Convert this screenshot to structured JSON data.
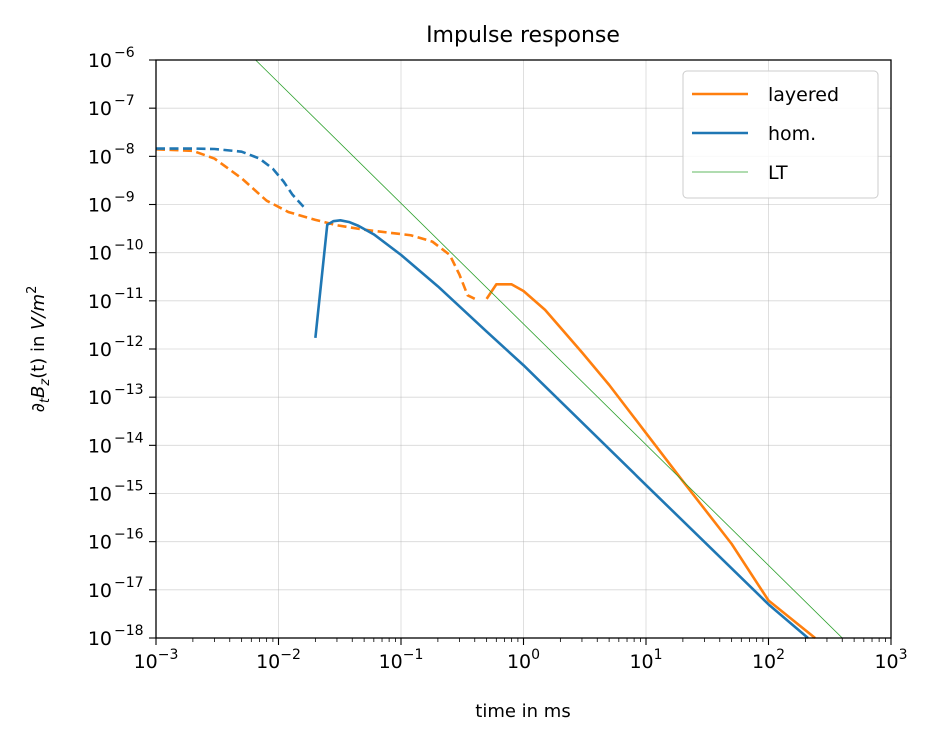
{
  "chart_data": {
    "type": "line",
    "title": "Impulse response",
    "xlabel": "time in ms",
    "ylabel": "∂tBz(t) in V/m²",
    "ylabel_parts": {
      "pre": "∂",
      "sub1": "t",
      "mid": "B",
      "sub2": "z",
      "arg": "(t) in ",
      "unit": "V/m",
      "sup": "2"
    },
    "xscale": "log",
    "yscale": "log",
    "xlim": [
      0.001,
      1000
    ],
    "ylim": [
      1e-18,
      1e-06
    ],
    "x_ticks": [
      {
        "base": "10",
        "exp": "−3"
      },
      {
        "base": "10",
        "exp": "−2"
      },
      {
        "base": "10",
        "exp": "−1"
      },
      {
        "base": "10",
        "exp": "0"
      },
      {
        "base": "10",
        "exp": "1"
      },
      {
        "base": "10",
        "exp": "2"
      },
      {
        "base": "10",
        "exp": "3"
      }
    ],
    "y_ticks": [
      {
        "base": "10",
        "exp": "−18"
      },
      {
        "base": "10",
        "exp": "−17"
      },
      {
        "base": "10",
        "exp": "−16"
      },
      {
        "base": "10",
        "exp": "−15"
      },
      {
        "base": "10",
        "exp": "−14"
      },
      {
        "base": "10",
        "exp": "−13"
      },
      {
        "base": "10",
        "exp": "−12"
      },
      {
        "base": "10",
        "exp": "−11"
      },
      {
        "base": "10",
        "exp": "−10"
      },
      {
        "base": "10",
        "exp": "−9"
      },
      {
        "base": "10",
        "exp": "−8"
      },
      {
        "base": "10",
        "exp": "−7"
      },
      {
        "base": "10",
        "exp": "−6"
      }
    ],
    "grid": true,
    "legend_position": "top-right",
    "legend": [
      "layered",
      "hom.",
      "LT"
    ],
    "series": [
      {
        "name": "layered",
        "color": "#ff7f0e",
        "segments": [
          {
            "style": "dashed",
            "x": [
              0.001,
              0.002,
              0.003,
              0.005,
              0.008,
              0.012,
              0.02,
              0.03,
              0.05,
              0.08,
              0.12,
              0.18,
              0.25,
              0.3,
              0.35,
              0.4
            ],
            "y": [
              1.4e-08,
              1.3e-08,
              9e-09,
              3.5e-09,
              1.2e-09,
              7e-10,
              4.8e-10,
              3.7e-10,
              3e-10,
              2.6e-10,
              2.3e-10,
              1.7e-10,
              9e-11,
              3.5e-11,
              1.3e-11,
              1.1e-11
            ]
          },
          {
            "style": "solid",
            "x": [
              0.5,
              0.6,
              0.8,
              1,
              1.5,
              2,
              3,
              5,
              10,
              20,
              50,
              100,
              240
            ],
            "y": [
              1.1e-11,
              2.2e-11,
              2.2e-11,
              1.6e-11,
              6.5e-12,
              2.8e-12,
              8.5e-13,
              1.8e-13,
              1.8e-14,
              1.8e-15,
              9e-17,
              6e-18,
              1e-18
            ]
          }
        ]
      },
      {
        "name": "hom.",
        "color": "#1f77b4",
        "segments": [
          {
            "style": "dashed",
            "x": [
              0.001,
              0.002,
              0.003,
              0.005,
              0.007,
              0.009,
              0.011,
              0.013,
              0.016
            ],
            "y": [
              1.45e-08,
              1.45e-08,
              1.42e-08,
              1.25e-08,
              9e-09,
              5.5e-09,
              3e-09,
              1.6e-09,
              9e-10
            ]
          },
          {
            "style": "solid",
            "x": [
              0.02,
              0.025,
              0.028,
              0.032,
              0.038,
              0.045,
              0.06,
              0.1,
              0.2,
              0.5,
              1,
              10,
              100,
              210
            ],
            "y": [
              1.7e-12,
              3.8e-10,
              4.5e-10,
              4.7e-10,
              4.3e-10,
              3.6e-10,
              2.4e-10,
              9e-11,
              2e-11,
              2.3e-12,
              4.6e-13,
              1.5e-15,
              5e-18,
              1e-18
            ]
          }
        ]
      },
      {
        "name": "LT",
        "color": "#2ca02c",
        "thin": true,
        "segments": [
          {
            "style": "solid",
            "x": [
              0.0065,
              400
            ],
            "y": [
              1e-06,
              1e-18
            ]
          }
        ]
      }
    ]
  }
}
